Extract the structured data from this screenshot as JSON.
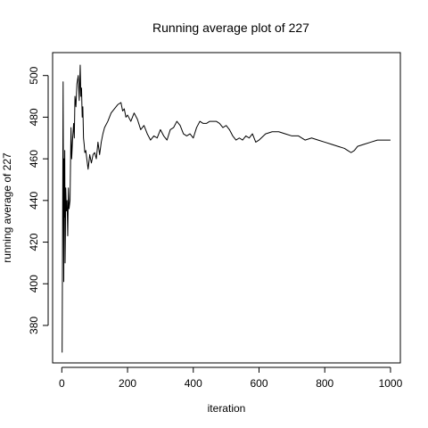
{
  "chart_data": {
    "type": "line",
    "title": "Running average plot of 227",
    "xlabel": "iteration",
    "ylabel": "running average of 227",
    "xlim": [
      -28,
      1030
    ],
    "ylim": [
      362,
      511
    ],
    "x_ticks": [
      0,
      200,
      400,
      600,
      800,
      1000
    ],
    "y_ticks": [
      380,
      400,
      420,
      440,
      460,
      480,
      500
    ],
    "x_tick_labels": [
      "0",
      "200",
      "400",
      "600",
      "800",
      "1000"
    ],
    "y_tick_labels": [
      "380",
      "400",
      "420",
      "440",
      "460",
      "480",
      "500"
    ],
    "grid": false,
    "legend": "none",
    "line_color": "#000000",
    "series": [
      {
        "x": [
          1,
          2,
          3,
          4,
          5,
          6,
          7,
          8,
          9,
          10,
          11,
          12,
          14,
          16,
          18,
          20,
          22,
          25,
          28,
          30,
          33,
          36,
          38,
          40,
          43,
          46,
          50,
          53,
          56,
          58,
          60,
          62,
          64,
          66,
          68,
          70,
          73,
          76,
          80,
          85,
          90,
          95,
          100,
          105,
          110,
          115,
          120,
          125,
          130,
          140,
          150,
          160,
          170,
          180,
          185,
          190,
          195,
          200,
          210,
          220,
          230,
          240,
          250,
          260,
          270,
          280,
          290,
          300,
          310,
          320,
          330,
          340,
          350,
          360,
          370,
          380,
          390,
          400,
          410,
          420,
          430,
          440,
          450,
          460,
          470,
          480,
          490,
          500,
          510,
          520,
          530,
          540,
          550,
          560,
          570,
          580,
          590,
          600,
          620,
          640,
          660,
          680,
          700,
          720,
          740,
          760,
          780,
          800,
          820,
          840,
          860,
          870,
          880,
          890,
          900,
          920,
          940,
          960,
          980,
          1000
        ],
        "y": [
          367,
          410,
          455,
          497,
          440,
          401,
          460,
          432,
          464,
          410,
          424,
          446,
          435,
          440,
          423,
          446,
          436,
          440,
          475,
          460,
          470,
          477,
          470,
          490,
          485,
          496,
          500,
          488,
          505,
          490,
          494,
          480,
          485,
          470,
          467,
          463,
          464,
          460,
          455,
          462,
          458,
          462,
          463,
          460,
          468,
          462,
          468,
          472,
          475,
          478,
          482,
          484,
          486,
          487,
          483,
          484,
          480,
          481,
          478,
          482,
          479,
          474,
          476,
          472,
          469,
          471,
          470,
          474,
          471,
          469,
          474,
          475,
          478,
          476,
          472,
          471,
          472,
          470,
          475,
          478,
          477,
          477,
          478,
          478,
          478,
          477,
          475,
          476,
          474,
          471,
          469,
          470,
          469,
          471,
          470,
          472,
          468,
          469,
          472,
          473,
          473,
          472,
          471,
          471,
          469,
          470,
          469,
          468,
          467,
          466,
          465,
          464,
          463,
          464,
          466,
          467,
          468,
          469,
          469,
          469
        ]
      }
    ]
  }
}
